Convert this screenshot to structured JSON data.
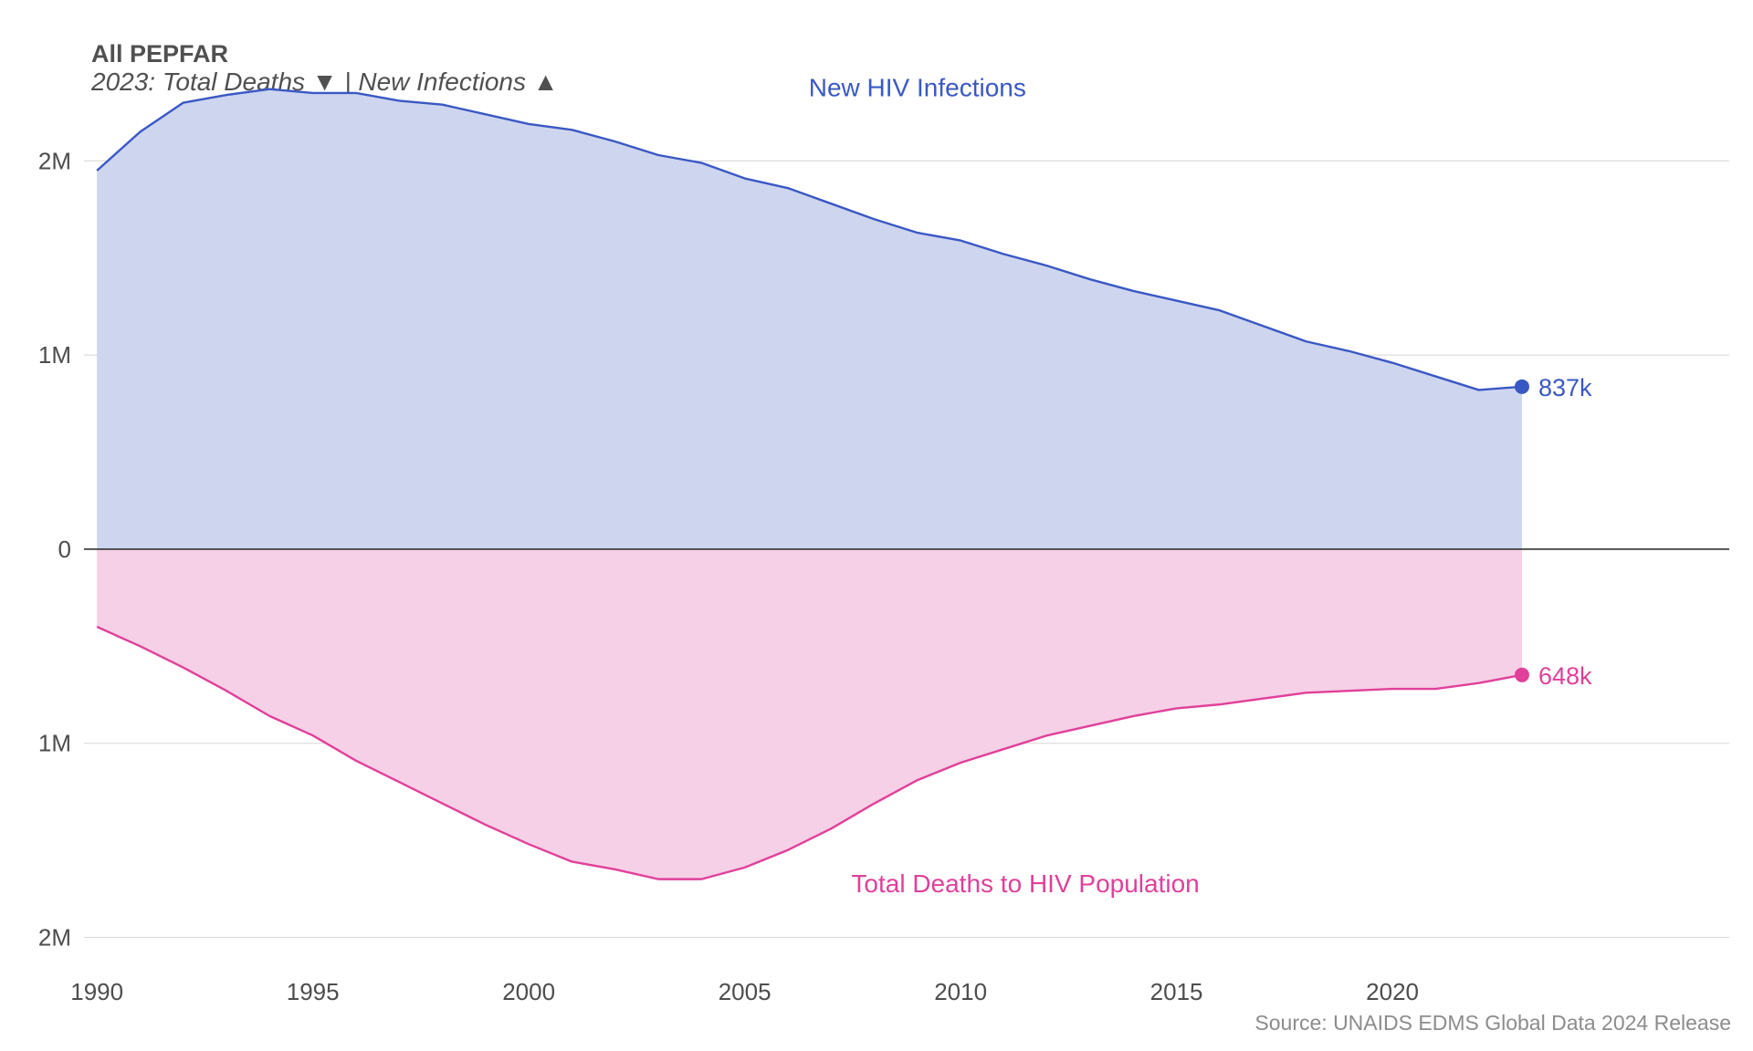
{
  "title": "All PEPFAR",
  "subtitle": "2023: Total Deaths ▼ | New Infections ▲",
  "source": "Source: UNAIDS EDMS Global Data 2024 Release",
  "chart_data": {
    "type": "area",
    "title": "All PEPFAR",
    "subtitle": "2023: Total Deaths ▼ | New Infections ▲",
    "xlabel": "",
    "ylabel": "",
    "xlim": [
      1989.7,
      2027.8
    ],
    "ylim": [
      -2200000,
      2500000
    ],
    "grid": true,
    "legend": "none",
    "x_ticks": [
      1990,
      1995,
      2000,
      2005,
      2010,
      2015,
      2020
    ],
    "y_ticks": [
      {
        "value": 2000000,
        "label": "2M"
      },
      {
        "value": 1000000,
        "label": "1M"
      },
      {
        "value": 0,
        "label": "0"
      },
      {
        "value": -1000000,
        "label": "1M"
      },
      {
        "value": -2000000,
        "label": "2M"
      }
    ],
    "x": [
      1990,
      1991,
      1992,
      1993,
      1994,
      1995,
      1996,
      1997,
      1998,
      1999,
      2000,
      2001,
      2002,
      2003,
      2004,
      2005,
      2006,
      2007,
      2008,
      2009,
      2010,
      2011,
      2012,
      2013,
      2014,
      2015,
      2016,
      2017,
      2018,
      2019,
      2020,
      2021,
      2022,
      2023
    ],
    "series": [
      {
        "name": "New HIV Infections",
        "color": "#3a58c4",
        "fill": "#ced5ef",
        "values": [
          1950000,
          2150000,
          2300000,
          2340000,
          2370000,
          2350000,
          2350000,
          2310000,
          2290000,
          2240000,
          2190000,
          2160000,
          2100000,
          2030000,
          1990000,
          1910000,
          1860000,
          1780000,
          1700000,
          1630000,
          1590000,
          1520000,
          1460000,
          1390000,
          1330000,
          1280000,
          1230000,
          1150000,
          1070000,
          1020000,
          960000,
          890000,
          820000,
          837000
        ],
        "end_label": "837k"
      },
      {
        "name": "Total Deaths to HIV Population",
        "color": "#e0409a",
        "fill": "#f6d0e6",
        "values": [
          400000,
          500000,
          610000,
          730000,
          860000,
          960000,
          1090000,
          1200000,
          1310000,
          1420000,
          1520000,
          1610000,
          1650000,
          1700000,
          1700000,
          1640000,
          1550000,
          1440000,
          1310000,
          1190000,
          1100000,
          1030000,
          960000,
          910000,
          860000,
          820000,
          800000,
          770000,
          740000,
          730000,
          720000,
          720000,
          690000,
          648000
        ],
        "end_label": "648k"
      }
    ],
    "annotations": [
      {
        "text": "New HIV Infections",
        "x": 2009,
        "y": 2380000,
        "color": "#3a58c4"
      },
      {
        "text": "Total Deaths to HIV Population",
        "x": 2011.5,
        "y": -1720000,
        "color": "#e0409a"
      }
    ]
  }
}
